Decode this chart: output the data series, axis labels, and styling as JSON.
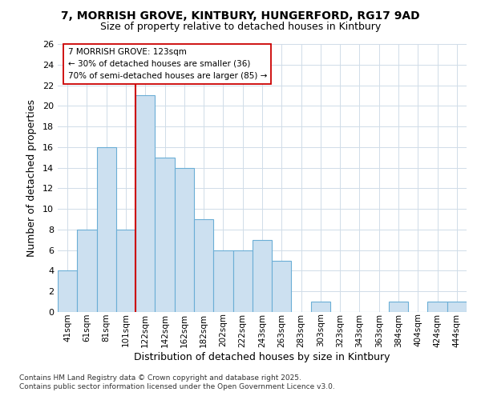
{
  "title1": "7, MORRISH GROVE, KINTBURY, HUNGERFORD, RG17 9AD",
  "title2": "Size of property relative to detached houses in Kintbury",
  "xlabel": "Distribution of detached houses by size in Kintbury",
  "ylabel": "Number of detached properties",
  "annotation_line1": "7 MORRISH GROVE: 123sqm",
  "annotation_line2": "← 30% of detached houses are smaller (36)",
  "annotation_line3": "70% of semi-detached houses are larger (85) →",
  "footer1": "Contains HM Land Registry data © Crown copyright and database right 2025.",
  "footer2": "Contains public sector information licensed under the Open Government Licence v3.0.",
  "bar_color": "#cce0f0",
  "bar_edge_color": "#6baed6",
  "grid_color": "#d0dce8",
  "vline_color": "#cc0000",
  "categories": [
    "41sqm",
    "61sqm",
    "81sqm",
    "101sqm",
    "122sqm",
    "142sqm",
    "162sqm",
    "182sqm",
    "202sqm",
    "222sqm",
    "243sqm",
    "263sqm",
    "283sqm",
    "303sqm",
    "323sqm",
    "343sqm",
    "363sqm",
    "384sqm",
    "404sqm",
    "424sqm",
    "444sqm"
  ],
  "values": [
    4,
    8,
    16,
    8,
    21,
    15,
    14,
    9,
    6,
    6,
    7,
    5,
    0,
    1,
    0,
    0,
    0,
    1,
    0,
    1,
    1
  ],
  "ylim": [
    0,
    26
  ],
  "yticks": [
    0,
    2,
    4,
    6,
    8,
    10,
    12,
    14,
    16,
    18,
    20,
    22,
    24,
    26
  ],
  "background_color": "#ffffff",
  "vline_bar_index": 4
}
